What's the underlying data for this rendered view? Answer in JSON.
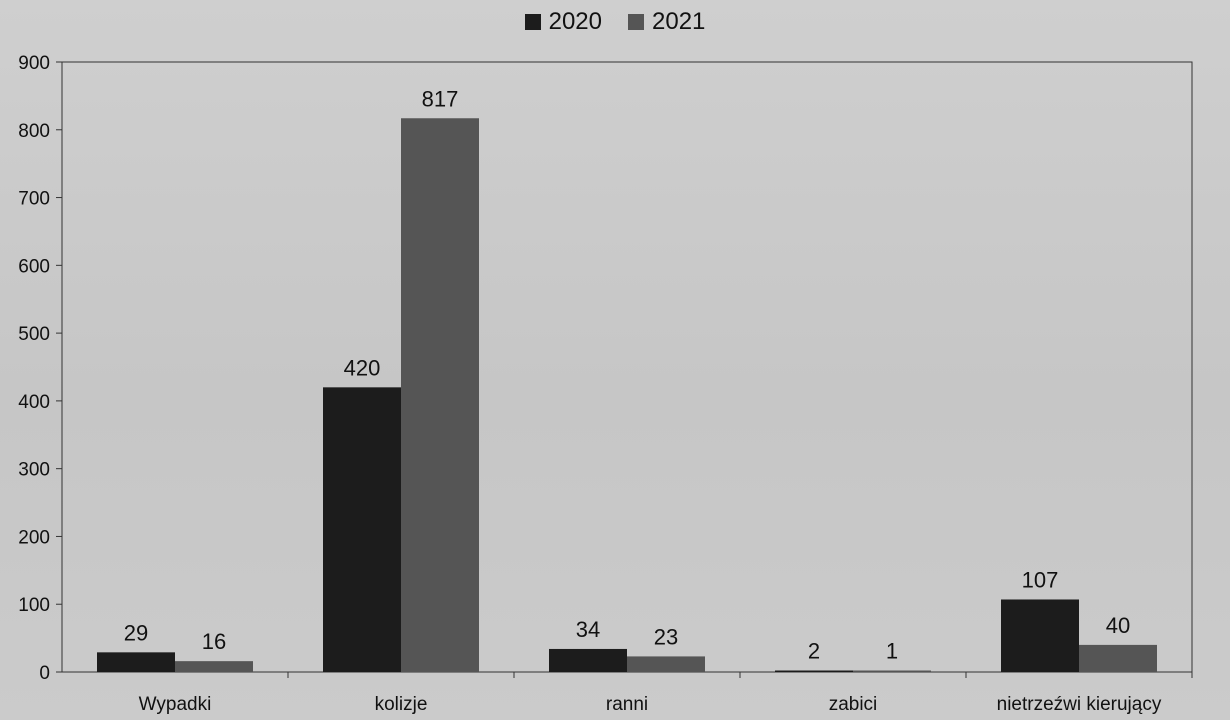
{
  "chart_data": {
    "type": "bar",
    "categories": [
      "Wypadki",
      "kolizje",
      "ranni",
      "zabici",
      "nietrzeźwi kierujący"
    ],
    "series": [
      {
        "name": "2020",
        "values": [
          29,
          420,
          34,
          2,
          107
        ],
        "color": "#1c1c1c"
      },
      {
        "name": "2021",
        "values": [
          16,
          817,
          23,
          1,
          40
        ],
        "color": "#555555"
      }
    ],
    "data_labels": {
      "2020": [
        "29",
        "420",
        "34",
        "2",
        "107"
      ],
      "2021": [
        "16",
        "817",
        "23",
        "1",
        "40"
      ]
    },
    "y_ticks": [
      "0",
      "100",
      "200",
      "300",
      "400",
      "500",
      "600",
      "700",
      "800",
      "900"
    ],
    "ylim": [
      0,
      900
    ],
    "title": "",
    "xlabel": "",
    "ylabel": "",
    "legend_position": "top-center",
    "grid": false
  }
}
